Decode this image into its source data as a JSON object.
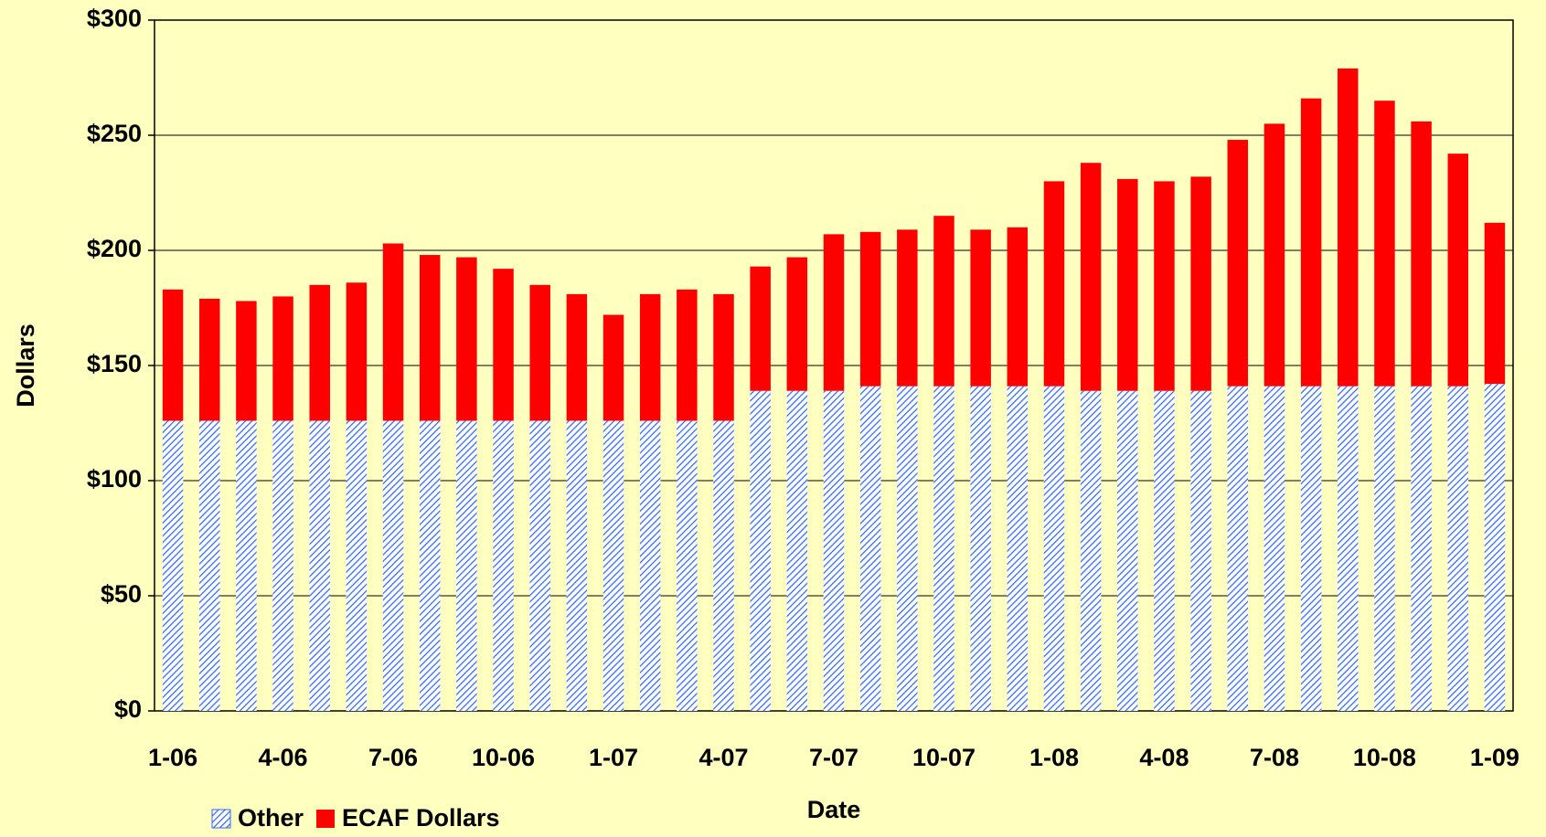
{
  "chart_data": {
    "type": "stacked_bar",
    "x_label": "Date",
    "y_label": "Dollars",
    "categories": [
      "1-06",
      null,
      null,
      "4-06",
      null,
      null,
      "7-06",
      null,
      null,
      "10-06",
      null,
      null,
      "1-07",
      null,
      null,
      "4-07",
      null,
      null,
      "7-07",
      null,
      null,
      "10-07",
      null,
      null,
      "1-08",
      null,
      null,
      "4-08",
      null,
      null,
      "7-08",
      null,
      null,
      "10-08",
      null,
      null,
      "1-09"
    ],
    "series": [
      {
        "name": "Other",
        "color": "#3366ff",
        "pattern": "hatch",
        "values": [
          126,
          126,
          126,
          126,
          126,
          126,
          126,
          126,
          126,
          126,
          126,
          126,
          126,
          126,
          126,
          126,
          139,
          139,
          139,
          141,
          141,
          141,
          141,
          141,
          141,
          139,
          139,
          139,
          139,
          141,
          141,
          141,
          141,
          141,
          141,
          141,
          142
        ]
      },
      {
        "name": "ECAF Dollars",
        "color": "#ff0000",
        "values": [
          57,
          53,
          52,
          54,
          59,
          60,
          77,
          72,
          71,
          66,
          59,
          55,
          46,
          55,
          57,
          55,
          54,
          58,
          68,
          67,
          68,
          74,
          68,
          69,
          89,
          99,
          92,
          91,
          93,
          107,
          114,
          125,
          138,
          124,
          115,
          101,
          70
        ]
      }
    ],
    "ylim": [
      0,
      300
    ],
    "yticks": [
      {
        "value": 0,
        "label": "$0"
      },
      {
        "value": 50,
        "label": "$50"
      },
      {
        "value": 100,
        "label": "$100"
      },
      {
        "value": 150,
        "label": "$150"
      },
      {
        "value": 200,
        "label": "$200"
      },
      {
        "value": 250,
        "label": "$250"
      },
      {
        "value": 300,
        "label": "$300"
      }
    ],
    "grid": true,
    "legend": "bottom-left"
  }
}
